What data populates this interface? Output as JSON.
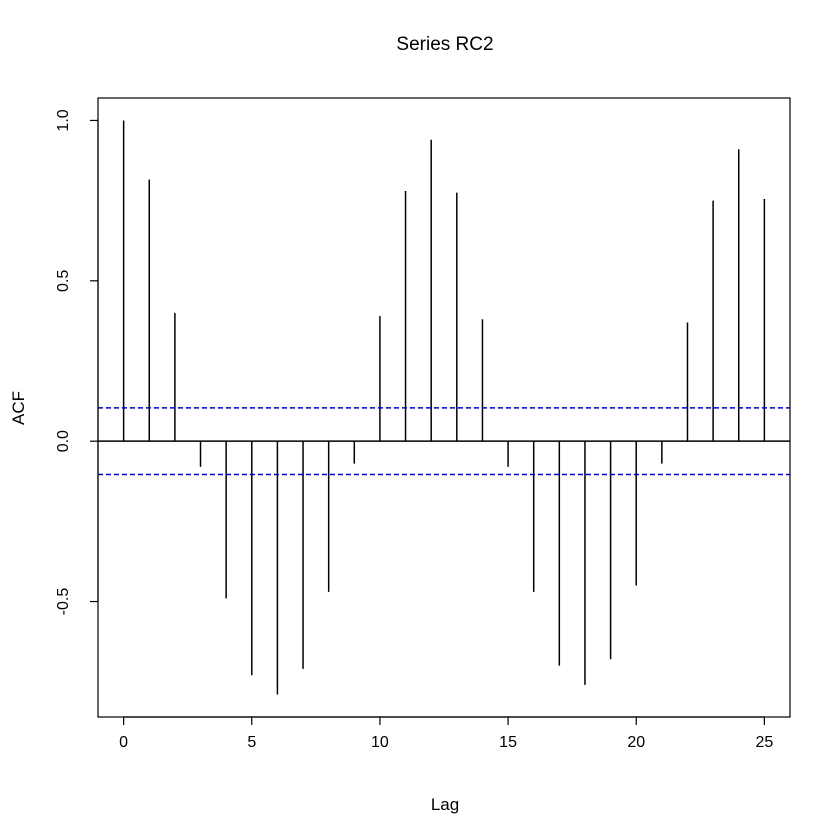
{
  "chart_data": {
    "type": "bar",
    "title": "Series  RC2",
    "xlabel": "Lag",
    "ylabel": "ACF",
    "xlim": [
      -1,
      26
    ],
    "ylim": [
      -0.86,
      1.07
    ],
    "x_ticks": [
      0,
      5,
      10,
      15,
      20,
      25
    ],
    "x_tick_labels": [
      "0",
      "5",
      "10",
      "15",
      "20",
      "25"
    ],
    "y_ticks": [
      -0.5,
      0.0,
      0.5,
      1.0
    ],
    "y_tick_labels": [
      "-0.5",
      "0.0",
      "0.5",
      "1.0"
    ],
    "grid": false,
    "lags": [
      0,
      1,
      2,
      3,
      4,
      5,
      6,
      7,
      8,
      9,
      10,
      11,
      12,
      13,
      14,
      15,
      16,
      17,
      18,
      19,
      20,
      21,
      22,
      23,
      24,
      25
    ],
    "acf": [
      1.0,
      0.816,
      0.4,
      -0.08,
      -0.49,
      -0.73,
      -0.79,
      -0.71,
      -0.47,
      -0.07,
      0.39,
      0.78,
      0.94,
      0.775,
      0.38,
      -0.08,
      -0.47,
      -0.7,
      -0.76,
      -0.68,
      -0.45,
      -0.07,
      0.37,
      0.75,
      0.91,
      0.755
    ],
    "confidence_bound": 0.104,
    "colors": {
      "spikes": "#000000",
      "confidence": "#0000cc"
    }
  }
}
